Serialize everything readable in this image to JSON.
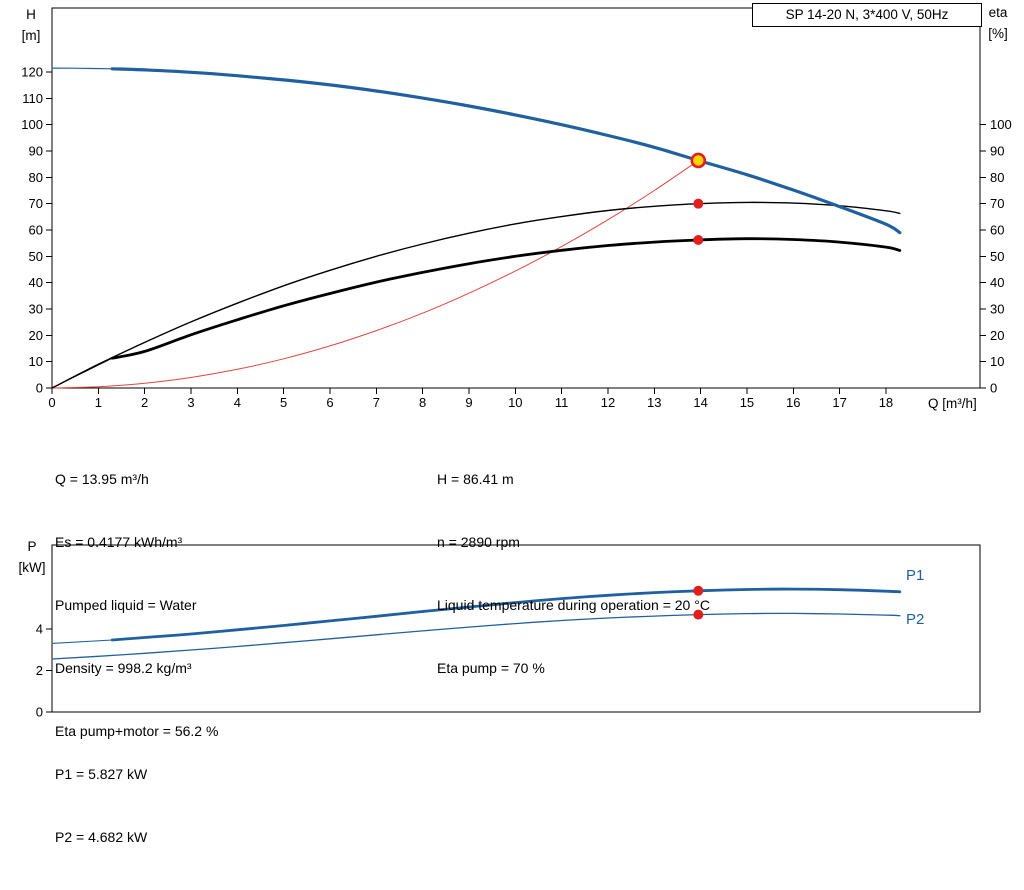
{
  "colors": {
    "blue": "#2060a0",
    "black": "#000000",
    "red": "#e2453c",
    "dot_red": "#e01f1f",
    "yellow": "#ffd400",
    "border": "#000000"
  },
  "axis_labels": {
    "h": "H",
    "h_unit": "[m]",
    "eta": "eta",
    "eta_unit": "[%]",
    "q": "Q [m³/h]",
    "p": "P",
    "p_unit": "[kW]",
    "p1": "P1",
    "p2": "P2"
  },
  "annotations": {
    "left": [
      "Q = 13.95 m³/h",
      "Es = 0.4177 kWh/m³",
      "Pumped liquid = Water",
      "Density = 998.2 kg/m³",
      "Eta pump+motor = 56.2 %"
    ],
    "right": [
      "H = 86.41 m",
      "n = 2890 rpm",
      "Liquid temperature during operation = 20 °C",
      "Eta pump = 70 %"
    ],
    "power": [
      "P1 = 5.827 kW",
      "P2 = 4.682 kW"
    ]
  },
  "chart_data": [
    {
      "type": "line",
      "title": "SP 14-20 N, 3*400 V, 50Hz",
      "xlabel": "Q [m³/h]",
      "ylabel": "H [m]",
      "ylabel_right": "eta [%]",
      "xlim": [
        0,
        20
      ],
      "ylim": [
        0,
        144
      ],
      "right_axis_scale": "same-as-left",
      "grid": false,
      "x_ticks": [
        0,
        1,
        2,
        3,
        4,
        5,
        6,
        7,
        8,
        9,
        10,
        11,
        12,
        13,
        14,
        15,
        16,
        17,
        18
      ],
      "y_ticks_left": [
        0,
        10,
        20,
        30,
        40,
        50,
        60,
        70,
        80,
        90,
        100,
        110,
        120
      ],
      "y_ticks_right": [
        0,
        10,
        20,
        30,
        40,
        50,
        60,
        70,
        80,
        90,
        100
      ],
      "series": [
        {
          "name": "system-curve",
          "color": "red",
          "width": 1,
          "x": [
            0,
            1,
            2,
            3,
            4,
            5,
            6,
            7,
            8,
            9,
            10,
            11,
            12,
            13,
            13.95
          ],
          "values": [
            0,
            0.45,
            1.8,
            4.0,
            7.1,
            11.1,
            16.0,
            21.8,
            28.4,
            36.0,
            44.4,
            53.7,
            63.9,
            75.0,
            86.41
          ]
        },
        {
          "name": "eta-pump-curve",
          "color": "black",
          "width": 1.4,
          "x": [
            0,
            1,
            2,
            3,
            4,
            5,
            6,
            7,
            8,
            9,
            10,
            11,
            12,
            13,
            13.95,
            15,
            16,
            17,
            18,
            18.3
          ],
          "values": [
            0,
            9.0,
            17.3,
            25.1,
            32.2,
            38.8,
            44.7,
            50.0,
            54.7,
            58.8,
            62.3,
            65.1,
            67.4,
            69.0,
            70.0,
            70.5,
            70.2,
            69.2,
            67.3,
            66.3
          ]
        },
        {
          "name": "eta-pump-motor-lowflow",
          "color": "black",
          "width": 0.9,
          "x": [
            0,
            1.3
          ],
          "values": [
            0,
            11.3
          ]
        },
        {
          "name": "eta-pump-motor-curve",
          "color": "black",
          "width": 2.8,
          "x": [
            1.3,
            2,
            3,
            4,
            5,
            6,
            7,
            8,
            9,
            10,
            11,
            12,
            13,
            13.95,
            15,
            16,
            17,
            18,
            18.3
          ],
          "values": [
            11.3,
            13.9,
            20.2,
            25.9,
            31.2,
            35.9,
            40.2,
            43.9,
            47.2,
            50.0,
            52.3,
            54.1,
            55.4,
            56.2,
            56.7,
            56.4,
            55.4,
            53.5,
            52.2
          ]
        },
        {
          "name": "head-curve-lowflow",
          "color": "blue",
          "width": 1.2,
          "x": [
            0,
            0.65,
            1.3
          ],
          "values": [
            121.5,
            121.4,
            121.2
          ]
        },
        {
          "name": "head-curve",
          "color": "blue",
          "width": 3.2,
          "x": [
            1.3,
            2,
            3,
            4,
            5,
            6,
            7,
            8,
            9,
            10,
            11,
            12,
            13,
            13.95,
            15,
            16,
            17,
            18,
            18.3
          ],
          "values": [
            121.2,
            120.8,
            119.9,
            118.6,
            117.0,
            115.1,
            112.8,
            110.1,
            107.1,
            103.7,
            100.0,
            95.9,
            91.4,
            86.41,
            81.0,
            75.2,
            68.9,
            62.2,
            59.0
          ]
        }
      ],
      "markers": [
        {
          "name": "duty-point-head",
          "style": "ring",
          "x": 13.95,
          "y": 86.41,
          "fill": "yellow",
          "stroke": "dot_red"
        },
        {
          "name": "duty-point-eta-pump",
          "style": "dot",
          "x": 13.95,
          "y": 70,
          "fill": "dot_red"
        },
        {
          "name": "duty-point-eta-pump-motor",
          "style": "dot",
          "x": 13.95,
          "y": 56.2,
          "fill": "dot_red"
        }
      ]
    },
    {
      "type": "line",
      "title": "",
      "xlabel": "",
      "ylabel": "P [kW]",
      "xlim": [
        0,
        20
      ],
      "ylim": [
        0,
        8
      ],
      "grid": false,
      "x_ticks": [],
      "y_ticks_left": [
        0,
        2,
        4
      ],
      "series": [
        {
          "name": "p1-lowflow",
          "color": "blue",
          "width": 1.1,
          "x": [
            0,
            1.3
          ],
          "values": [
            3.3,
            3.46
          ]
        },
        {
          "name": "p1-curve",
          "color": "blue",
          "width": 2.8,
          "x": [
            1.3,
            2,
            3,
            4,
            5,
            6,
            7,
            8,
            9,
            10,
            11,
            12,
            13,
            13.95,
            15,
            16,
            17,
            18,
            18.3
          ],
          "values": [
            3.46,
            3.58,
            3.75,
            3.95,
            4.16,
            4.38,
            4.6,
            4.83,
            5.05,
            5.26,
            5.45,
            5.61,
            5.74,
            5.827,
            5.89,
            5.91,
            5.88,
            5.81,
            5.78
          ]
        },
        {
          "name": "p2-curve",
          "color": "blue",
          "width": 1.3,
          "x": [
            0,
            1,
            2,
            3,
            4,
            5,
            6,
            7,
            8,
            9,
            10,
            11,
            12,
            13,
            13.95,
            15,
            16,
            17,
            18,
            18.3
          ],
          "values": [
            2.55,
            2.68,
            2.82,
            2.98,
            3.15,
            3.33,
            3.52,
            3.71,
            3.9,
            4.08,
            4.25,
            4.4,
            4.52,
            4.61,
            4.682,
            4.73,
            4.74,
            4.71,
            4.66,
            4.63
          ]
        }
      ],
      "markers": [
        {
          "name": "duty-point-p1",
          "style": "dot",
          "x": 13.95,
          "y": 5.827,
          "fill": "dot_red"
        },
        {
          "name": "duty-point-p2",
          "style": "dot",
          "x": 13.95,
          "y": 4.682,
          "fill": "dot_red"
        }
      ]
    }
  ]
}
